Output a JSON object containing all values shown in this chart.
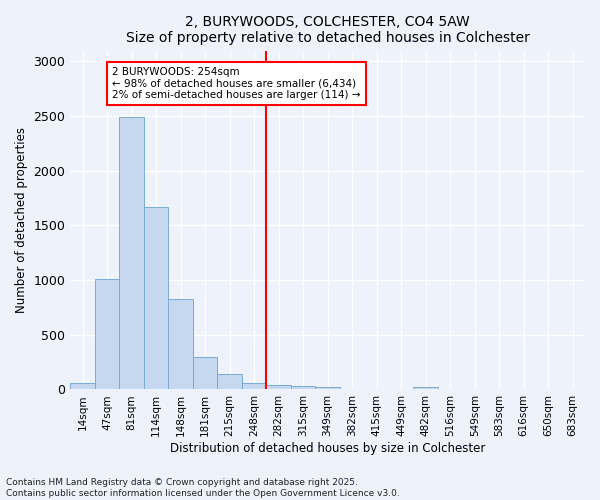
{
  "title1": "2, BURYWOODS, COLCHESTER, CO4 5AW",
  "title2": "Size of property relative to detached houses in Colchester",
  "xlabel": "Distribution of detached houses by size in Colchester",
  "ylabel": "Number of detached properties",
  "bar_labels": [
    "14sqm",
    "47sqm",
    "81sqm",
    "114sqm",
    "148sqm",
    "181sqm",
    "215sqm",
    "248sqm",
    "282sqm",
    "315sqm",
    "349sqm",
    "382sqm",
    "415sqm",
    "449sqm",
    "482sqm",
    "516sqm",
    "549sqm",
    "583sqm",
    "616sqm",
    "650sqm",
    "683sqm"
  ],
  "bar_values": [
    55,
    1010,
    2490,
    1670,
    830,
    295,
    140,
    55,
    45,
    35,
    25,
    5,
    0,
    0,
    25,
    0,
    0,
    0,
    0,
    0,
    0
  ],
  "bar_color": "#c5d8f0",
  "bar_edgecolor": "#7aadd4",
  "vline_x": 7.5,
  "vline_color": "red",
  "annotation_text": "2 BURYWOODS: 254sqm\n← 98% of detached houses are smaller (6,434)\n2% of semi-detached houses are larger (114) →",
  "annotation_box_color": "white",
  "annotation_box_edgecolor": "red",
  "ylim": [
    0,
    3100
  ],
  "background_color": "#eef2fb",
  "grid_color": "white",
  "footnote": "Contains HM Land Registry data © Crown copyright and database right 2025.\nContains public sector information licensed under the Open Government Licence v3.0."
}
